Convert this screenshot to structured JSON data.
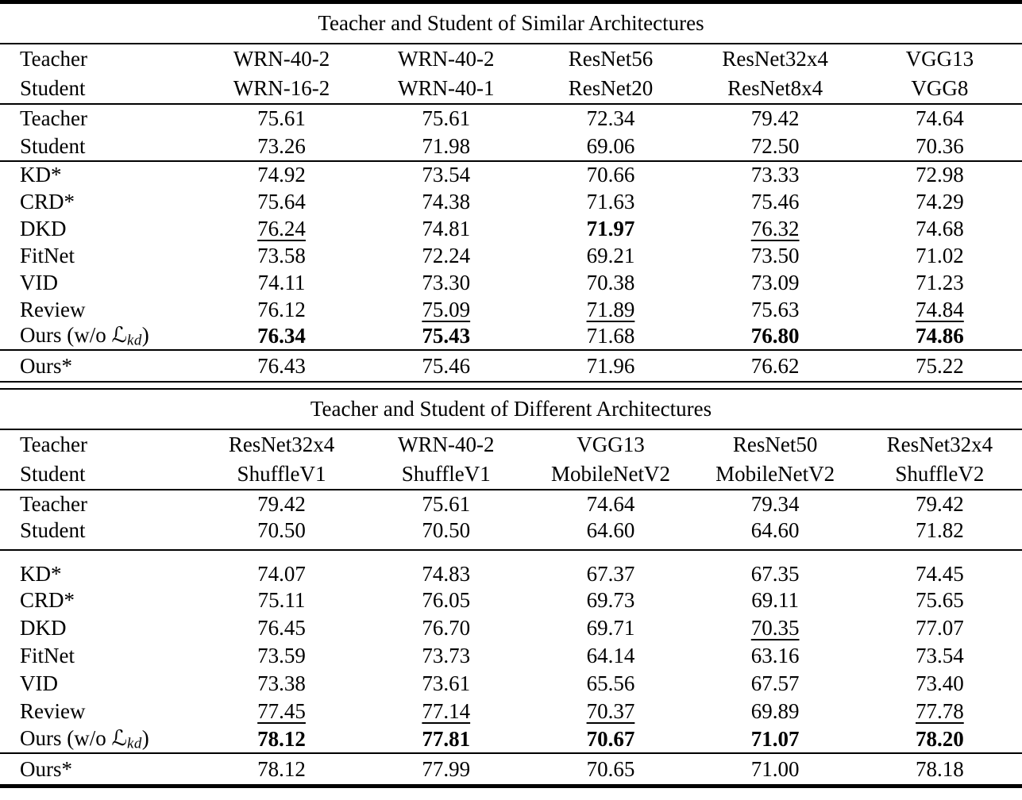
{
  "page": {
    "background": "#ffffff",
    "text_color": "#000000",
    "rule_color": "#000000"
  },
  "tables": [
    {
      "id": "similar",
      "title": "Teacher and Student of Similar Architectures",
      "arch_rows": [
        {
          "label": [
            [
              "t",
              "Teacher"
            ]
          ],
          "cells": [
            {
              "v": "WRN-40-2"
            },
            {
              "v": "WRN-40-2"
            },
            {
              "v": "ResNet56"
            },
            {
              "v": "ResNet32x4"
            },
            {
              "v": "VGG13"
            }
          ]
        },
        {
          "label": [
            [
              "t",
              "Student"
            ]
          ],
          "cells": [
            {
              "v": "WRN-16-2"
            },
            {
              "v": "WRN-40-1"
            },
            {
              "v": "ResNet20"
            },
            {
              "v": "ResNet8x4"
            },
            {
              "v": "VGG8"
            }
          ]
        }
      ],
      "baseline_rows": [
        {
          "label": [
            [
              "t",
              "Teacher"
            ]
          ],
          "cells": [
            {
              "v": "75.61"
            },
            {
              "v": "75.61"
            },
            {
              "v": "72.34"
            },
            {
              "v": "79.42"
            },
            {
              "v": "74.64"
            }
          ]
        },
        {
          "label": [
            [
              "t",
              "Student"
            ]
          ],
          "cells": [
            {
              "v": "73.26"
            },
            {
              "v": "71.98"
            },
            {
              "v": "69.06"
            },
            {
              "v": "72.50"
            },
            {
              "v": "70.36"
            }
          ]
        }
      ],
      "method_rows": [
        {
          "label": [
            [
              "t",
              "KD*"
            ]
          ],
          "cells": [
            {
              "v": "74.92"
            },
            {
              "v": "73.54"
            },
            {
              "v": "70.66"
            },
            {
              "v": "73.33"
            },
            {
              "v": "72.98"
            }
          ]
        },
        {
          "label": [
            [
              "t",
              "CRD*"
            ]
          ],
          "cells": [
            {
              "v": "75.64"
            },
            {
              "v": "74.38"
            },
            {
              "v": "71.63"
            },
            {
              "v": "75.46"
            },
            {
              "v": "74.29"
            }
          ]
        },
        {
          "label": [
            [
              "t",
              "DKD"
            ]
          ],
          "cells": [
            {
              "v": "76.24",
              "f": "u"
            },
            {
              "v": "74.81"
            },
            {
              "v": "71.97",
              "f": "b"
            },
            {
              "v": "76.32",
              "f": "u"
            },
            {
              "v": "74.68"
            }
          ]
        },
        {
          "label": [
            [
              "t",
              "FitNet"
            ]
          ],
          "cells": [
            {
              "v": "73.58"
            },
            {
              "v": "72.24"
            },
            {
              "v": "69.21"
            },
            {
              "v": "73.50"
            },
            {
              "v": "71.02"
            }
          ]
        },
        {
          "label": [
            [
              "t",
              "VID"
            ]
          ],
          "cells": [
            {
              "v": "74.11"
            },
            {
              "v": "73.30"
            },
            {
              "v": "70.38"
            },
            {
              "v": "73.09"
            },
            {
              "v": "71.23"
            }
          ]
        },
        {
          "label": [
            [
              "t",
              "Review"
            ]
          ],
          "cells": [
            {
              "v": "76.12"
            },
            {
              "v": "75.09",
              "f": "u"
            },
            {
              "v": "71.89",
              "f": "u"
            },
            {
              "v": "75.63"
            },
            {
              "v": "74.84",
              "f": "u"
            }
          ]
        },
        {
          "label": [
            [
              "t",
              "Ours (w/o "
            ],
            [
              "m",
              "ℒ"
            ],
            [
              "s",
              "kd"
            ],
            [
              "t",
              ")"
            ]
          ],
          "cells": [
            {
              "v": "76.34",
              "f": "b"
            },
            {
              "v": "75.43",
              "f": "b"
            },
            {
              "v": "71.68"
            },
            {
              "v": "76.80",
              "f": "b"
            },
            {
              "v": "74.86",
              "f": "b"
            }
          ]
        }
      ],
      "final_rows": [
        {
          "label": [
            [
              "t",
              "Ours*"
            ]
          ],
          "cells": [
            {
              "v": "76.43"
            },
            {
              "v": "75.46"
            },
            {
              "v": "71.96"
            },
            {
              "v": "76.62"
            },
            {
              "v": "75.22"
            }
          ]
        }
      ]
    },
    {
      "id": "different",
      "title": "Teacher and Student of Different Architectures",
      "arch_rows": [
        {
          "label": [
            [
              "t",
              "Teacher"
            ]
          ],
          "cells": [
            {
              "v": "ResNet32x4"
            },
            {
              "v": "WRN-40-2"
            },
            {
              "v": "VGG13"
            },
            {
              "v": "ResNet50"
            },
            {
              "v": "ResNet32x4"
            }
          ]
        },
        {
          "label": [
            [
              "t",
              "Student"
            ]
          ],
          "cells": [
            {
              "v": "ShuffleV1"
            },
            {
              "v": "ShuffleV1"
            },
            {
              "v": "MobileNetV2"
            },
            {
              "v": "MobileNetV2"
            },
            {
              "v": "ShuffleV2"
            }
          ]
        }
      ],
      "baseline_rows": [
        {
          "label": [
            [
              "t",
              "Teacher"
            ]
          ],
          "cells": [
            {
              "v": "79.42"
            },
            {
              "v": "75.61"
            },
            {
              "v": "74.64"
            },
            {
              "v": "79.34"
            },
            {
              "v": "79.42"
            }
          ]
        },
        {
          "label": [
            [
              "t",
              "Student"
            ]
          ],
          "cells": [
            {
              "v": "70.50"
            },
            {
              "v": "70.50"
            },
            {
              "v": "64.60"
            },
            {
              "v": "64.60"
            },
            {
              "v": "71.82"
            }
          ]
        }
      ],
      "method_rows": [
        {
          "label": [
            [
              "t",
              "KD*"
            ]
          ],
          "cells": [
            {
              "v": "74.07"
            },
            {
              "v": "74.83"
            },
            {
              "v": "67.37"
            },
            {
              "v": "67.35"
            },
            {
              "v": "74.45"
            }
          ]
        },
        {
          "label": [
            [
              "t",
              "CRD*"
            ]
          ],
          "cells": [
            {
              "v": "75.11"
            },
            {
              "v": "76.05"
            },
            {
              "v": "69.73"
            },
            {
              "v": "69.11"
            },
            {
              "v": "75.65"
            }
          ]
        },
        {
          "label": [
            [
              "t",
              "DKD"
            ]
          ],
          "cells": [
            {
              "v": "76.45"
            },
            {
              "v": "76.70"
            },
            {
              "v": "69.71"
            },
            {
              "v": "70.35",
              "f": "u"
            },
            {
              "v": "77.07"
            }
          ]
        },
        {
          "label": [
            [
              "t",
              "FitNet"
            ]
          ],
          "cells": [
            {
              "v": "73.59"
            },
            {
              "v": "73.73"
            },
            {
              "v": "64.14"
            },
            {
              "v": "63.16"
            },
            {
              "v": "73.54"
            }
          ]
        },
        {
          "label": [
            [
              "t",
              "VID"
            ]
          ],
          "cells": [
            {
              "v": "73.38"
            },
            {
              "v": "73.61"
            },
            {
              "v": "65.56"
            },
            {
              "v": "67.57"
            },
            {
              "v": "73.40"
            }
          ]
        },
        {
          "label": [
            [
              "t",
              "Review"
            ]
          ],
          "cells": [
            {
              "v": "77.45",
              "f": "u"
            },
            {
              "v": "77.14",
              "f": "u"
            },
            {
              "v": "70.37",
              "f": "u"
            },
            {
              "v": "69.89"
            },
            {
              "v": "77.78",
              "f": "u"
            }
          ]
        },
        {
          "label": [
            [
              "t",
              "Ours (w/o "
            ],
            [
              "m",
              "ℒ"
            ],
            [
              "s",
              "kd"
            ],
            [
              "t",
              ")"
            ]
          ],
          "cells": [
            {
              "v": "78.12",
              "f": "b"
            },
            {
              "v": "77.81",
              "f": "b"
            },
            {
              "v": "70.67",
              "f": "b"
            },
            {
              "v": "71.07",
              "f": "b"
            },
            {
              "v": "78.20",
              "f": "b"
            }
          ]
        }
      ],
      "final_rows": [
        {
          "label": [
            [
              "t",
              "Ours*"
            ]
          ],
          "cells": [
            {
              "v": "78.12"
            },
            {
              "v": "77.99"
            },
            {
              "v": "70.65"
            },
            {
              "v": "71.00"
            },
            {
              "v": "78.18"
            }
          ]
        }
      ]
    }
  ]
}
